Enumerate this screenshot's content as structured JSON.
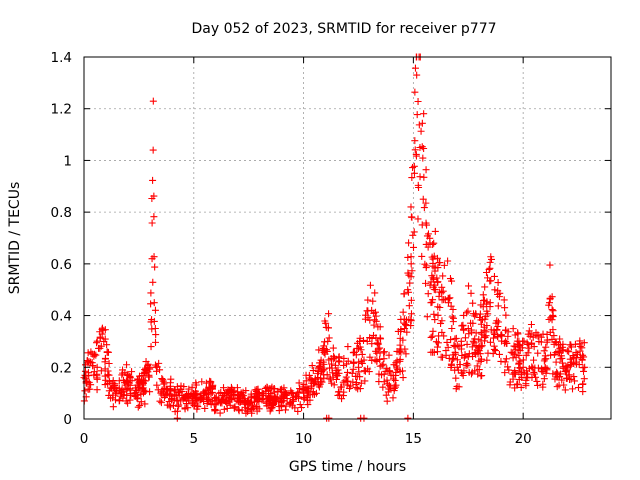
{
  "chart_data": {
    "type": "scatter",
    "title": "Day 052 of 2023, SRMTID for receiver p777",
    "xlabel": "GPS time / hours",
    "ylabel": "SRMTID / TECUs",
    "xlim": [
      0,
      24
    ],
    "ylim": [
      0,
      1.4
    ],
    "xticks": [
      0,
      5,
      10,
      15,
      20
    ],
    "xtick_labels": [
      "0",
      "5",
      "10",
      "15",
      "20"
    ],
    "yticks": [
      0,
      0.2,
      0.4,
      0.6,
      0.8,
      1.0,
      1.2,
      1.4
    ],
    "ytick_labels": [
      "0",
      "0.2",
      "0.4",
      "0.6",
      "0.8",
      "1",
      "1.2",
      "1.4"
    ],
    "grid": true,
    "marker": "+",
    "color": "#ff0000",
    "x_range_of_data": [
      0,
      22.8
    ],
    "series": [
      {
        "name": "SRMTID",
        "x": [
          0.0,
          0.3,
          0.6,
          0.9,
          1.2,
          1.5,
          1.8,
          2.1,
          2.4,
          2.7,
          3.0,
          3.1,
          3.15,
          3.2,
          3.25,
          3.3,
          3.5,
          3.8,
          4.2,
          4.6,
          5.0,
          5.5,
          6.0,
          6.5,
          7.0,
          7.5,
          8.0,
          8.5,
          9.0,
          9.5,
          10.0,
          10.5,
          10.9,
          11.1,
          11.5,
          12.0,
          12.5,
          12.9,
          13.1,
          13.4,
          13.8,
          14.2,
          14.6,
          14.9,
          15.05,
          15.15,
          15.3,
          15.45,
          15.6,
          15.8,
          16.0,
          16.3,
          16.6,
          17.0,
          17.5,
          18.0,
          18.5,
          18.8,
          19.2,
          19.6,
          20.0,
          20.5,
          21.0,
          21.2,
          21.5,
          22.0,
          22.4,
          22.8
        ],
        "y": [
          0.16,
          0.22,
          0.2,
          0.3,
          0.12,
          0.1,
          0.15,
          0.13,
          0.11,
          0.12,
          0.2,
          0.62,
          1.04,
          0.45,
          0.35,
          0.2,
          0.1,
          0.1,
          0.09,
          0.08,
          0.08,
          0.1,
          0.08,
          0.07,
          0.08,
          0.07,
          0.08,
          0.08,
          0.08,
          0.07,
          0.1,
          0.14,
          0.22,
          0.3,
          0.17,
          0.18,
          0.2,
          0.3,
          0.42,
          0.27,
          0.15,
          0.18,
          0.35,
          0.6,
          0.95,
          1.33,
          1.05,
          0.85,
          0.75,
          0.45,
          0.5,
          0.38,
          0.45,
          0.2,
          0.35,
          0.28,
          0.45,
          0.38,
          0.3,
          0.25,
          0.2,
          0.28,
          0.2,
          0.45,
          0.22,
          0.19,
          0.22,
          0.2
        ]
      }
    ]
  }
}
